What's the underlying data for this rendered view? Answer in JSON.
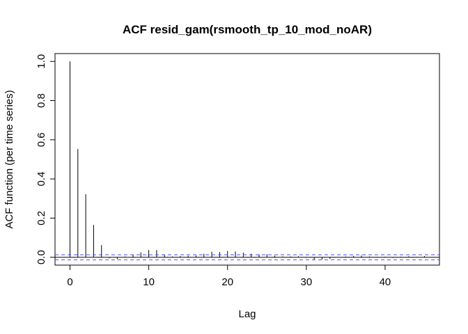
{
  "chart_data": {
    "type": "bar",
    "title": "ACF resid_gam(rsmooth_tp_10_mod_noAR)",
    "xlabel": "Lag",
    "ylabel": "ACF function (per time series)",
    "xlim": [
      -1.9,
      46.9
    ],
    "ylim": [
      -0.04,
      1.04
    ],
    "x_ticks": [
      0,
      10,
      20,
      30,
      40
    ],
    "y_ticks": [
      0.0,
      0.2,
      0.4,
      0.6,
      0.8,
      1.0
    ],
    "y_tick_labels": [
      "0.0",
      "0.2",
      "0.4",
      "0.6",
      "0.8",
      "1.0"
    ],
    "lags": [
      0,
      1,
      2,
      3,
      4,
      5,
      6,
      7,
      8,
      9,
      10,
      11,
      12,
      13,
      14,
      15,
      16,
      17,
      18,
      19,
      20,
      21,
      22,
      23,
      24,
      25,
      26,
      27,
      28,
      29,
      30,
      31,
      32,
      33,
      34,
      35,
      36,
      37,
      38,
      39,
      40,
      41,
      42,
      43,
      44,
      45
    ],
    "values": [
      1.0,
      0.553,
      0.322,
      0.165,
      0.062,
      -0.005,
      -0.01,
      0.004,
      0.012,
      0.025,
      0.037,
      0.037,
      0.013,
      0.004,
      0.006,
      0.008,
      0.009,
      0.018,
      0.028,
      0.027,
      0.032,
      0.03,
      0.024,
      0.018,
      0.015,
      0.016,
      0.008,
      0.004,
      0.004,
      0.005,
      -0.003,
      -0.012,
      -0.011,
      -0.008,
      -0.002,
      0.004,
      0.007,
      0.009,
      0.004,
      0.002,
      0.003,
      -0.003,
      0.003,
      0.005,
      0.002,
      0.006
    ],
    "ci_upper": 0.013,
    "ci_lower": -0.013,
    "grid": false,
    "colors": {
      "bars": "#000000",
      "zero_line": "#000000",
      "ci_lines": "#4a4aff",
      "axes": "#000000"
    }
  }
}
